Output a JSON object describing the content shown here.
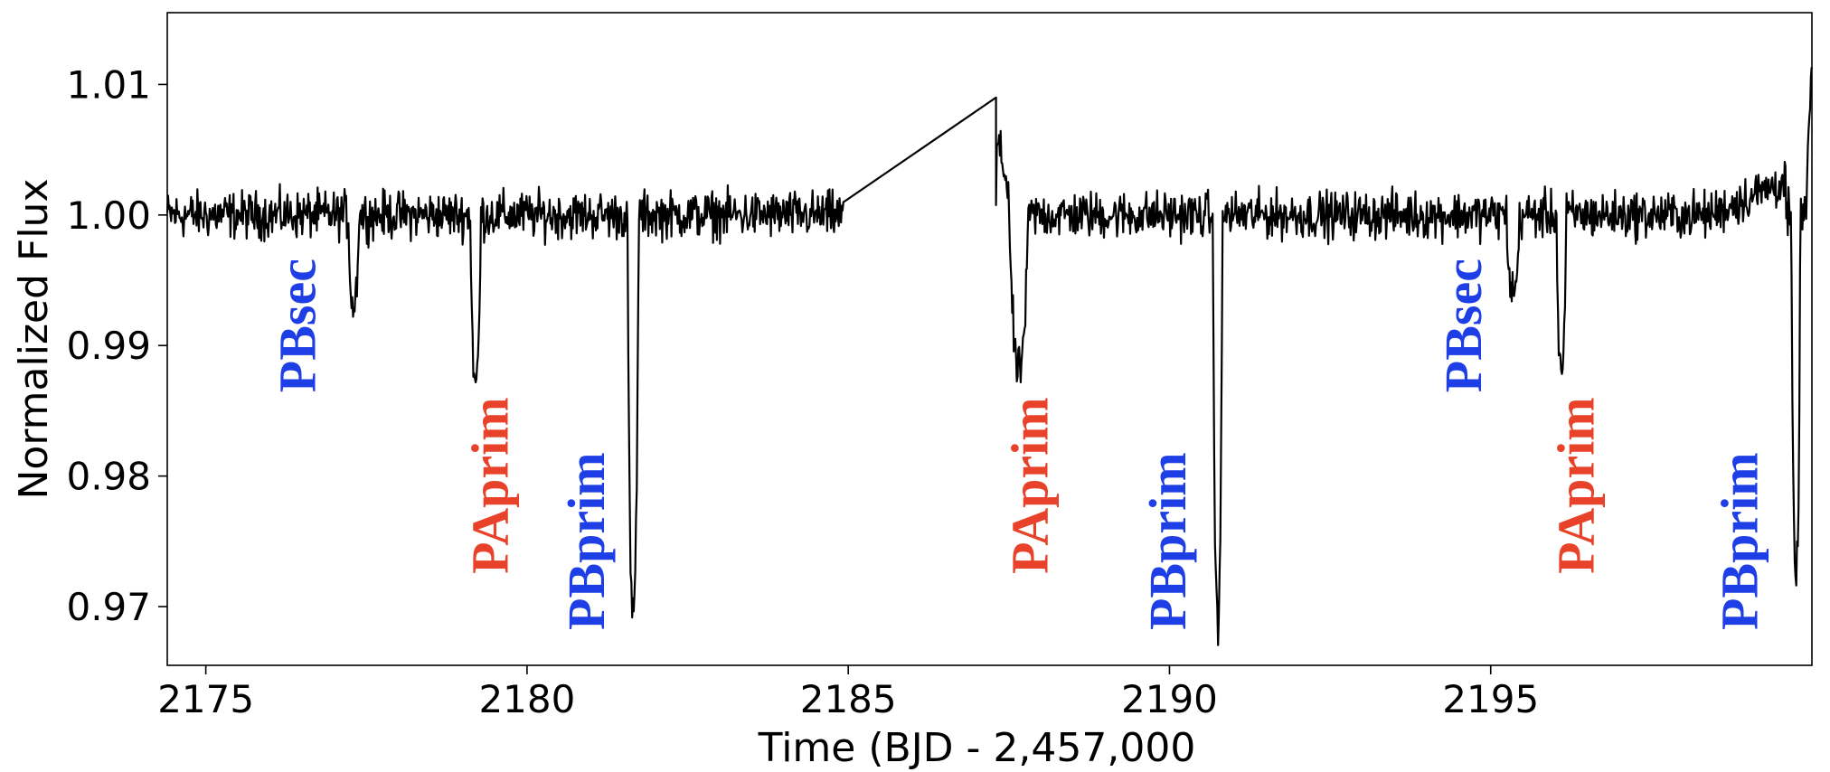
{
  "chart_data": {
    "type": "line",
    "title": "",
    "xlabel": "Time (BJD - 2,457,000",
    "ylabel": "Normalized Flux",
    "xlim": [
      2174.4,
      2200.0
    ],
    "ylim": [
      0.9655,
      1.0155
    ],
    "xticks": [
      2175,
      2180,
      2185,
      2190,
      2195
    ],
    "xtick_labels": [
      "2175",
      "2180",
      "2185",
      "2190",
      "2195"
    ],
    "yticks": [
      0.97,
      0.98,
      0.99,
      1.0,
      1.01
    ],
    "ytick_labels": [
      "0.97",
      "0.98",
      "0.99",
      "1.00",
      "1.01"
    ],
    "grid": false,
    "line_color": "#000000",
    "noise_level": 0.0016,
    "baseline": 1.0,
    "data_gap": {
      "start": [
        2184.93,
        1.001
      ],
      "end": [
        2187.3,
        1.009
      ]
    },
    "eclipses": [
      {
        "t": 2177.3,
        "depth": 0.007,
        "width": 0.16
      },
      {
        "t": 2179.2,
        "depth": 0.013,
        "width": 0.16
      },
      {
        "t": 2181.65,
        "depth": 0.031,
        "width": 0.17
      },
      {
        "t": 2187.65,
        "depth": 0.012,
        "width": 0.3
      },
      {
        "t": 2190.75,
        "depth": 0.031,
        "width": 0.15
      },
      {
        "t": 2195.35,
        "depth": 0.006,
        "width": 0.2
      },
      {
        "t": 2196.1,
        "depth": 0.012,
        "width": 0.15
      },
      {
        "t": 2199.75,
        "depth": 0.028,
        "width": 0.14
      }
    ],
    "annotations": [
      {
        "text": "PBsec",
        "color": "#1f3fe6",
        "x": 2176.7,
        "y": 0.9864
      },
      {
        "text": "PAprim",
        "color": "#e8432a",
        "x": 2179.7,
        "y": 0.9725
      },
      {
        "text": "PBprim",
        "color": "#1f3fe6",
        "x": 2181.2,
        "y": 0.9682
      },
      {
        "text": "PAprim",
        "color": "#e8432a",
        "x": 2188.1,
        "y": 0.9725
      },
      {
        "text": "PBprim",
        "color": "#1f3fe6",
        "x": 2190.25,
        "y": 0.9682
      },
      {
        "text": "PBsec",
        "color": "#1f3fe6",
        "x": 2194.85,
        "y": 0.9864
      },
      {
        "text": "PAprim",
        "color": "#e8432a",
        "x": 2196.6,
        "y": 0.9725
      },
      {
        "text": "PBprim",
        "color": "#1f3fe6",
        "x": 2199.15,
        "y": 0.9682
      }
    ]
  }
}
